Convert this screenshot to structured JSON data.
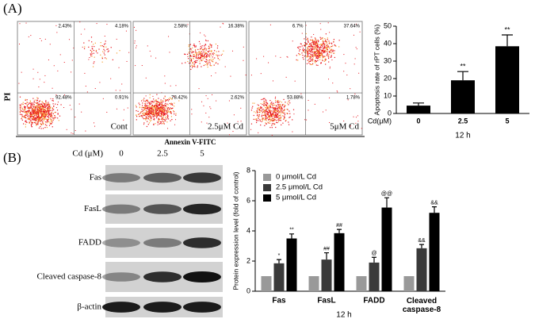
{
  "panel_labels": [
    "(A)",
    "(B)"
  ],
  "flow": {
    "y_label": "PI",
    "x_label": "Annexin V-FITC",
    "plots": [
      {
        "label": "Cont",
        "quadrants": [
          "2.43%",
          "4.18%",
          "92.48%",
          "0.91%"
        ]
      },
      {
        "label": "2.5μM Cd",
        "quadrants": [
          "2.58%",
          "16.38%",
          "78.42%",
          "2.62%"
        ]
      },
      {
        "label": "5μM Cd",
        "quadrants": [
          "6.7%",
          "37.64%",
          "53.88%",
          "1.78%"
        ]
      }
    ]
  },
  "blot": {
    "header": "Cd (μM)",
    "lanes": [
      "0",
      "2.5",
      "5"
    ],
    "rows": [
      "Fas",
      "FasL",
      "FADD",
      "Cleaved caspase-8",
      "β-actin"
    ]
  },
  "chart_data": [
    {
      "type": "bar",
      "y_label": "Apoptosis rate of rPT cells (%)",
      "x_prefix": "Cd(μM)",
      "x_label": "12 h",
      "categories": [
        "0",
        "2.5",
        "5"
      ],
      "values": [
        4.5,
        19,
        38.5
      ],
      "errors": [
        1.5,
        5,
        6.5
      ],
      "annotations": [
        null,
        "**",
        "**"
      ],
      "color": "#000000",
      "ylim": [
        0,
        50
      ],
      "yticks": [
        0,
        10,
        20,
        30,
        40,
        50
      ]
    },
    {
      "type": "grouped_bar",
      "y_label": "Protein expression level (fold of control)",
      "x_label": "12 h",
      "categories": [
        "Fas",
        "FasL",
        "FADD",
        "Cleaved caspase-8"
      ],
      "series": [
        {
          "name": "0 μmol/L Cd",
          "color": "#999999",
          "values": [
            1,
            1,
            1,
            1
          ]
        },
        {
          "name": "2.5 μmol/L Cd",
          "color": "#3a3a3a",
          "values": [
            1.85,
            2.1,
            1.9,
            2.85
          ],
          "errors": [
            0.25,
            0.45,
            0.35,
            0.25
          ],
          "annotations": [
            "*",
            "##",
            "@",
            "&&"
          ]
        },
        {
          "name": "5 μmol/L Cd",
          "color": "#000000",
          "values": [
            3.5,
            3.85,
            5.55,
            5.2
          ],
          "errors": [
            0.3,
            0.25,
            0.65,
            0.4
          ],
          "annotations": [
            "**",
            "##",
            "@@",
            "&&"
          ]
        }
      ],
      "legend": "upper left",
      "ylim": [
        0,
        8
      ],
      "yticks": [
        0,
        2,
        4,
        6,
        8
      ]
    }
  ]
}
